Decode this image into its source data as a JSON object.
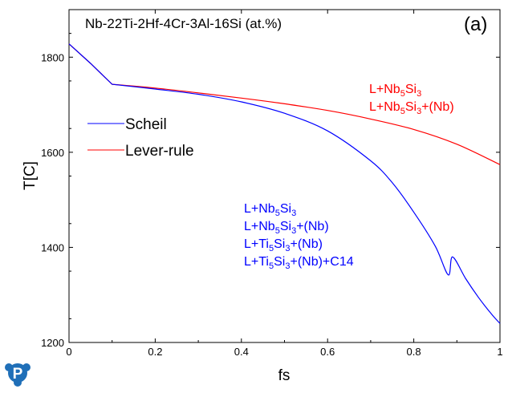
{
  "chart_data": {
    "type": "line",
    "title": "Nb-22Ti-2Hf-4Cr-3Al-16Si (at.%)",
    "panel_label": "(a)",
    "xlabel": "fs",
    "ylabel": "T[C]",
    "xlim": [
      0,
      1
    ],
    "ylim": [
      1200,
      1900
    ],
    "xticks": [
      "0",
      "0.2",
      "0.4",
      "0.6",
      "0.8",
      "1"
    ],
    "yticks": [
      "1200",
      "1400",
      "1600",
      "1800"
    ],
    "grid": false,
    "legend_position": "left",
    "series": [
      {
        "name": "Scheil",
        "color": "#0000ff",
        "x": [
          0,
          0.05,
          0.1,
          0.2,
          0.3,
          0.4,
          0.5,
          0.6,
          0.7,
          0.75,
          0.8,
          0.85,
          0.88,
          0.89,
          0.92,
          0.95,
          0.98,
          1.0
        ],
        "y": [
          1828,
          1787,
          1743,
          1733,
          1722,
          1706,
          1682,
          1645,
          1582,
          1536,
          1474,
          1402,
          1342,
          1380,
          1335,
          1295,
          1260,
          1240
        ]
      },
      {
        "name": "Lever-rule",
        "color": "#ff0000",
        "x": [
          0,
          0.05,
          0.1,
          0.2,
          0.3,
          0.4,
          0.5,
          0.6,
          0.7,
          0.8,
          0.9,
          1.0
        ],
        "y": [
          1828,
          1787,
          1743,
          1735,
          1725,
          1714,
          1702,
          1688,
          1670,
          1648,
          1617,
          1574
        ]
      }
    ],
    "annotations": {
      "red": {
        "color": "#ff0000",
        "lines": [
          [
            {
              "t": "L+Nb"
            },
            {
              "t": "5",
              "sub": true
            },
            {
              "t": "Si"
            },
            {
              "t": "3",
              "sub": true
            }
          ],
          [
            {
              "t": "L+Nb"
            },
            {
              "t": "5",
              "sub": true
            },
            {
              "t": "Si"
            },
            {
              "t": "3",
              "sub": true
            },
            {
              "t": "+(Nb)"
            }
          ]
        ]
      },
      "blue": {
        "color": "#0000ff",
        "lines": [
          [
            {
              "t": "L+Nb"
            },
            {
              "t": "5",
              "sub": true
            },
            {
              "t": "Si"
            },
            {
              "t": "3",
              "sub": true
            }
          ],
          [
            {
              "t": "L+Nb"
            },
            {
              "t": "5",
              "sub": true
            },
            {
              "t": "Si"
            },
            {
              "t": "3",
              "sub": true
            },
            {
              "t": "+(Nb)"
            }
          ],
          [
            {
              "t": "L+Ti"
            },
            {
              "t": "5",
              "sub": true
            },
            {
              "t": "Si"
            },
            {
              "t": "3",
              "sub": true
            },
            {
              "t": "+(Nb)"
            }
          ],
          [
            {
              "t": "L+Ti"
            },
            {
              "t": "5",
              "sub": true
            },
            {
              "t": "Si"
            },
            {
              "t": "3",
              "sub": true
            },
            {
              "t": "+(Nb)+C14"
            }
          ]
        ]
      }
    }
  },
  "logo": {
    "letter": "P",
    "color": "#1f6fb8",
    "icon": "pandat-logo-icon"
  }
}
